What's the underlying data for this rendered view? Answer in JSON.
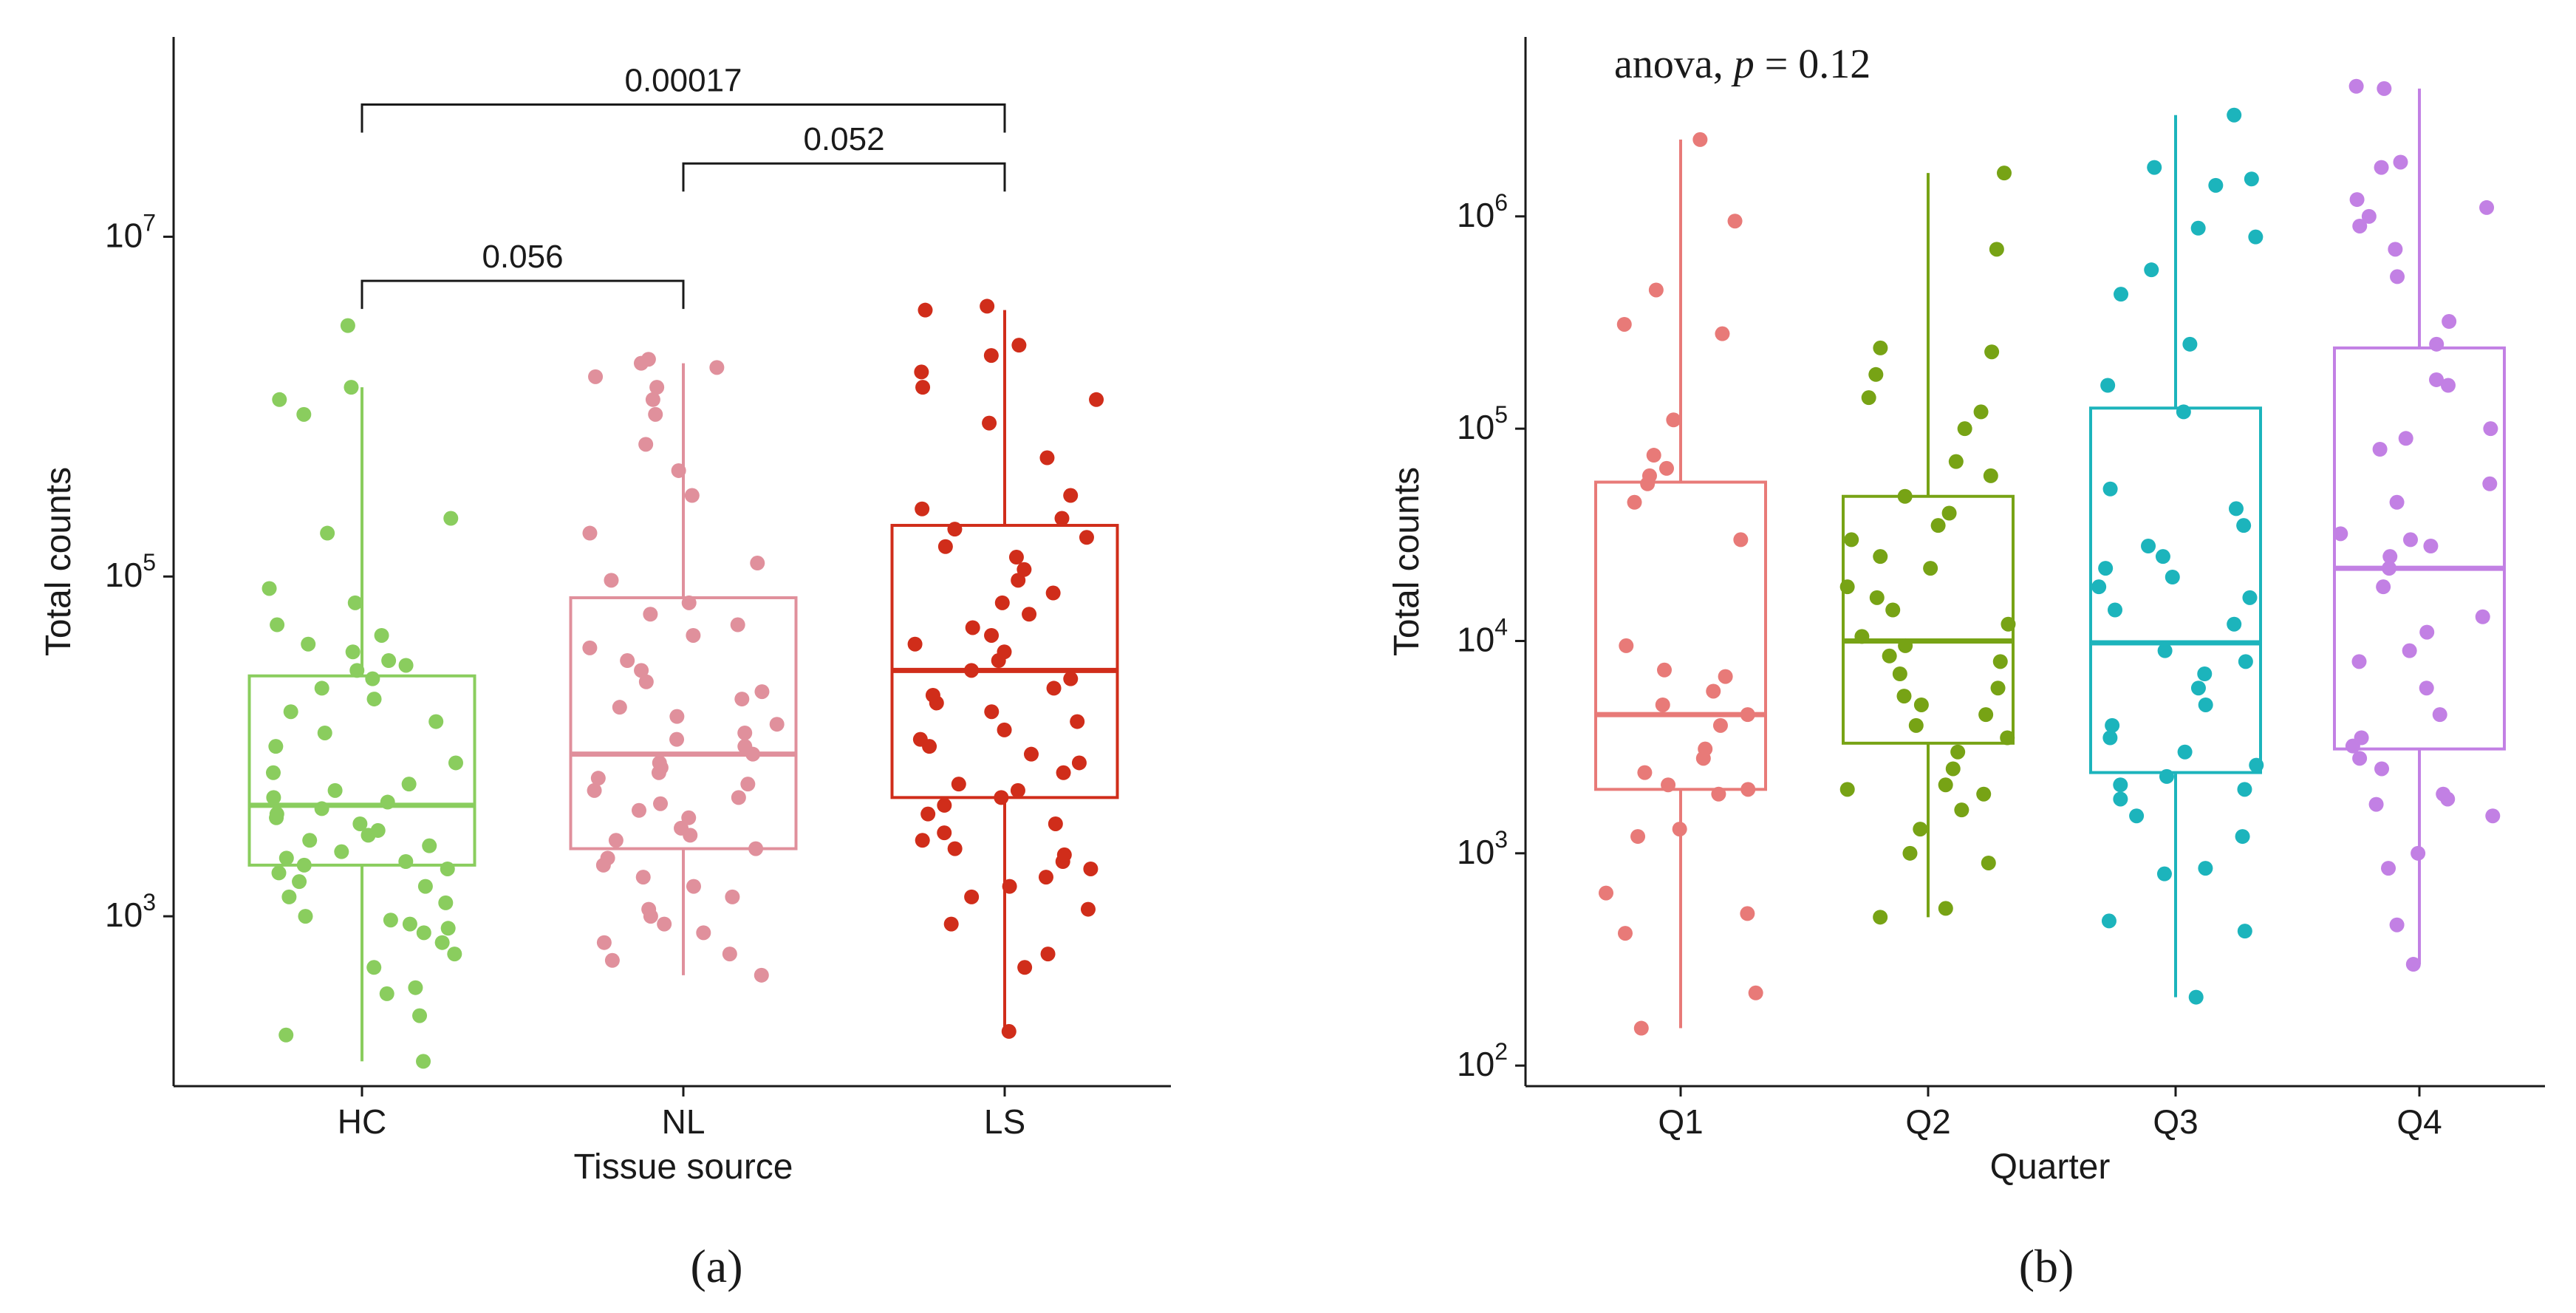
{
  "figure": {
    "panel_a_label": "(a)",
    "panel_b_label": "(b)"
  },
  "colors": {
    "HC": "#8acd5e",
    "NL": "#e0909c",
    "LS": "#d02d1a",
    "Q1": "#e87a78",
    "Q2": "#77a315",
    "Q3": "#1cb4bc",
    "Q4": "#c280e4",
    "axis": "#1a1a1a"
  },
  "chart_data": [
    {
      "type": "box",
      "panel": "(a)",
      "xlabel": "Tissue source",
      "ylabel": "Total counts",
      "yscale": "log10",
      "ylim": [
        100,
        150000000
      ],
      "yticks": [
        {
          "value": 1000,
          "base": "10",
          "exp": "3"
        },
        {
          "value": 100000,
          "base": "10",
          "exp": "5"
        },
        {
          "value": 10000000,
          "base": "10",
          "exp": "7"
        }
      ],
      "categories": [
        "HC",
        "NL",
        "LS"
      ],
      "boxes": [
        {
          "name": "HC",
          "min": 140,
          "q1": 2000,
          "median": 4500,
          "q3": 26000,
          "max": 1300000
        },
        {
          "name": "NL",
          "min": 450,
          "q1": 2500,
          "median": 9000,
          "q3": 75000,
          "max": 1800000
        },
        {
          "name": "LS",
          "min": 210,
          "q1": 5000,
          "median": 28000,
          "q3": 200000,
          "max": 3700000
        }
      ],
      "points": {
        "HC": [
          140,
          200,
          260,
          350,
          380,
          500,
          600,
          700,
          800,
          850,
          900,
          950,
          1000,
          1200,
          1300,
          1500,
          1600,
          1800,
          1900,
          2000,
          2100,
          2200,
          2400,
          2600,
          2800,
          3000,
          3200,
          3500,
          3800,
          4000,
          4300,
          4700,
          5000,
          5500,
          6000,
          7000,
          8000,
          10000,
          12000,
          14000,
          16000,
          19000,
          22000,
          25000,
          28000,
          30000,
          32000,
          36000,
          40000,
          45000,
          52000,
          70000,
          85000,
          180000,
          220000,
          900000,
          1100000,
          1300000,
          3000000
        ],
        "NL": [
          450,
          550,
          600,
          700,
          800,
          900,
          1000,
          1100,
          1300,
          1500,
          1700,
          2000,
          2200,
          2500,
          2800,
          3000,
          3300,
          3800,
          4200,
          4600,
          5000,
          5500,
          6000,
          6500,
          7000,
          7500,
          8000,
          9000,
          10000,
          11000,
          12000,
          13500,
          15000,
          17000,
          19000,
          21000,
          24000,
          28000,
          32000,
          38000,
          45000,
          52000,
          60000,
          70000,
          95000,
          120000,
          180000,
          300000,
          420000,
          600000,
          900000,
          1100000,
          1300000,
          1500000,
          1700000,
          1800000,
          1900000
        ],
        "LS": [
          210,
          500,
          600,
          900,
          1100,
          1300,
          1500,
          1700,
          1900,
          2100,
          2300,
          2500,
          2800,
          3100,
          3500,
          4000,
          4500,
          5000,
          5500,
          6000,
          7000,
          8000,
          9000,
          10000,
          11000,
          12500,
          14000,
          16000,
          18000,
          20000,
          22000,
          25000,
          28000,
          32000,
          36000,
          40000,
          45000,
          50000,
          60000,
          70000,
          80000,
          95000,
          110000,
          130000,
          150000,
          170000,
          190000,
          220000,
          250000,
          300000,
          500000,
          800000,
          1100000,
          1300000,
          1600000,
          2000000,
          2300000,
          3700000,
          3900000
        ]
      },
      "comparisons": [
        {
          "from": "HC",
          "to": "NL",
          "label": "0.056",
          "y": 5500000
        },
        {
          "from": "NL",
          "to": "LS",
          "label": "0.052",
          "y": 27000000
        },
        {
          "from": "HC",
          "to": "LS",
          "label": "0.00017",
          "y": 60000000
        }
      ]
    },
    {
      "type": "box",
      "panel": "(b)",
      "xlabel": "Quarter",
      "ylabel": "Total counts",
      "yscale": "log10",
      "ylim": [
        80,
        7000000
      ],
      "yticks": [
        {
          "value": 100,
          "base": "10",
          "exp": "2"
        },
        {
          "value": 1000,
          "base": "10",
          "exp": "3"
        },
        {
          "value": 10000,
          "base": "10",
          "exp": "4"
        },
        {
          "value": 100000,
          "base": "10",
          "exp": "5"
        },
        {
          "value": 1000000,
          "base": "10",
          "exp": "6"
        }
      ],
      "categories": [
        "Q1",
        "Q2",
        "Q3",
        "Q4"
      ],
      "annotation": {
        "prefix": "anova, ",
        "var": "p",
        "rest": " = 0.12"
      },
      "boxes": [
        {
          "name": "Q1",
          "min": 150,
          "q1": 2000,
          "median": 4500,
          "q3": 56000,
          "max": 2300000
        },
        {
          "name": "Q2",
          "min": 500,
          "q1": 3300,
          "median": 10000,
          "q3": 48000,
          "max": 1600000
        },
        {
          "name": "Q3",
          "min": 210,
          "q1": 2400,
          "median": 9800,
          "q3": 125000,
          "max": 3000000
        },
        {
          "name": "Q4",
          "min": 300,
          "q1": 3100,
          "median": 22000,
          "q3": 240000,
          "max": 4000000
        }
      ],
      "points": {
        "Q1": [
          150,
          220,
          420,
          520,
          650,
          1200,
          1300,
          1900,
          2000,
          2100,
          2400,
          2800,
          3100,
          4000,
          4500,
          5000,
          5800,
          6800,
          7300,
          9500,
          30000,
          45000,
          55000,
          60000,
          65000,
          75000,
          110000,
          280000,
          310000,
          450000,
          950000,
          2300000
        ],
        "Q2": [
          500,
          550,
          900,
          1000,
          1300,
          1600,
          1900,
          2000,
          2100,
          2500,
          3000,
          3500,
          4000,
          4500,
          5000,
          5500,
          6000,
          7000,
          8000,
          8500,
          9500,
          10500,
          12000,
          14000,
          16000,
          18000,
          22000,
          25000,
          30000,
          35000,
          40000,
          48000,
          60000,
          70000,
          100000,
          120000,
          140000,
          180000,
          230000,
          240000,
          700000,
          1600000
        ],
        "Q3": [
          210,
          430,
          480,
          800,
          850,
          1200,
          1500,
          1800,
          2000,
          2100,
          2300,
          2600,
          3000,
          3500,
          4000,
          5000,
          6000,
          7000,
          8000,
          9000,
          12000,
          14000,
          16000,
          18000,
          20000,
          22000,
          25000,
          28000,
          35000,
          42000,
          52000,
          120000,
          160000,
          250000,
          430000,
          560000,
          800000,
          880000,
          1400000,
          1500000,
          1700000,
          3000000
        ],
        "Q4": [
          300,
          460,
          850,
          1000,
          1500,
          1700,
          1800,
          1900,
          2500,
          2800,
          3200,
          3500,
          4500,
          6000,
          8000,
          9000,
          11000,
          13000,
          18000,
          22000,
          25000,
          28000,
          30000,
          32000,
          45000,
          55000,
          80000,
          90000,
          100000,
          160000,
          170000,
          250000,
          320000,
          520000,
          700000,
          900000,
          1000000,
          1100000,
          1200000,
          1700000,
          1800000,
          4000000,
          4100000
        ]
      }
    }
  ]
}
